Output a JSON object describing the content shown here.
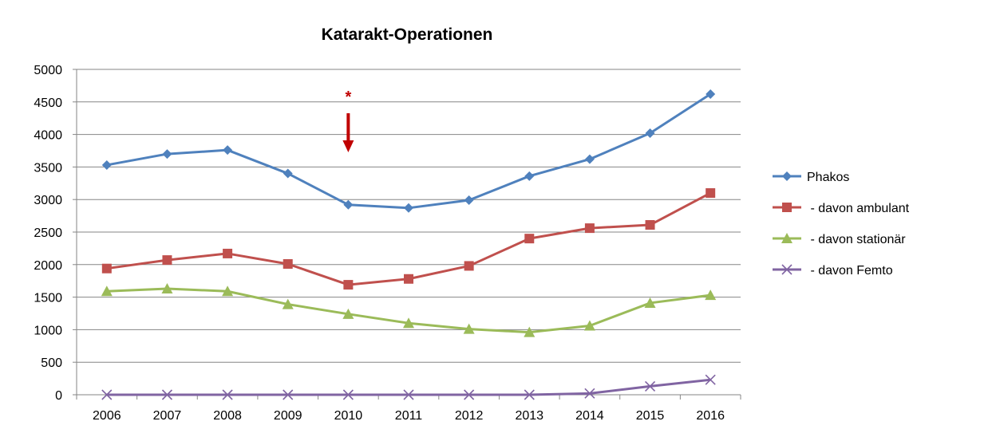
{
  "chart_data": {
    "type": "line",
    "title": "Katarakt-Operationen",
    "x": [
      "2006",
      "2007",
      "2008",
      "2009",
      "2010",
      "2011",
      "2012",
      "2013",
      "2014",
      "2015",
      "2016"
    ],
    "ylim": [
      0,
      5000
    ],
    "yticks": [
      "0",
      "500",
      "1000",
      "1500",
      "2000",
      "2500",
      "3000",
      "3500",
      "4000",
      "4500",
      "5000"
    ],
    "grid": true,
    "legend_position": "right",
    "series": [
      {
        "name": "Phakos",
        "color": "#4F81BD",
        "marker": "diamond",
        "values": [
          3530,
          3700,
          3760,
          3400,
          2920,
          2870,
          2990,
          3360,
          3620,
          4020,
          4620
        ]
      },
      {
        "name": " - davon ambulant",
        "color": "#C0504D",
        "marker": "square",
        "values": [
          1940,
          2070,
          2170,
          2010,
          1690,
          1780,
          1980,
          2400,
          2560,
          2610,
          3100
        ]
      },
      {
        "name": " - davon stationär",
        "color": "#9BBB59",
        "marker": "triangle",
        "values": [
          1590,
          1630,
          1590,
          1390,
          1240,
          1100,
          1010,
          960,
          1060,
          1410,
          1530
        ]
      },
      {
        "name": " - davon Femto",
        "color": "#8064A2",
        "marker": "x",
        "values": [
          0,
          0,
          0,
          0,
          0,
          0,
          0,
          0,
          20,
          130,
          230
        ]
      }
    ],
    "annotations": [
      {
        "text": "*",
        "x": "2010",
        "color": "#C00000",
        "arrow": "down"
      }
    ]
  }
}
